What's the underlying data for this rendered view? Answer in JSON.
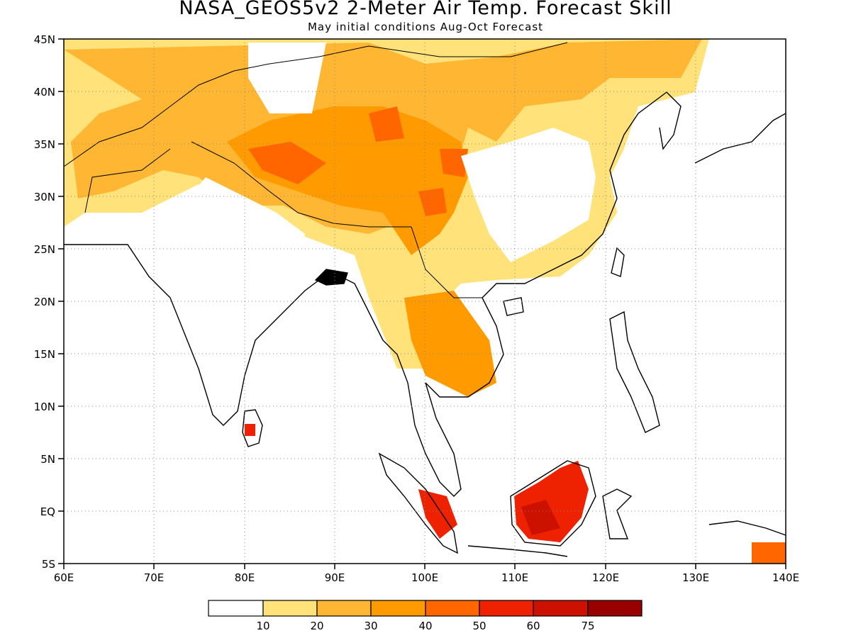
{
  "title": "NASA_GEOS5v2 2-Meter Air Temp. Forecast Skill",
  "subtitle": "May initial conditions  Aug-Oct Forecast",
  "map": {
    "region": "South and East Asia",
    "lon_range": [
      60,
      140
    ],
    "lat_range": [
      -5,
      45
    ],
    "x_ticks": [
      "60E",
      "70E",
      "80E",
      "90E",
      "100E",
      "110E",
      "120E",
      "130E",
      "140E"
    ],
    "y_ticks": [
      "45N",
      "40N",
      "35N",
      "30N",
      "25N",
      "20N",
      "15N",
      "10N",
      "5N",
      "EQ",
      "5S"
    ],
    "gridlines": "dotted",
    "variable": "2-meter air temperature forecast skill"
  },
  "colorbar": {
    "labels": [
      "10",
      "20",
      "30",
      "40",
      "50",
      "60",
      "75"
    ],
    "colors": [
      "#ffffff",
      "#ffe37a",
      "#ffb733",
      "#ff9a00",
      "#ff6600",
      "#ee2200",
      "#cc1100",
      "#990000"
    ]
  }
}
